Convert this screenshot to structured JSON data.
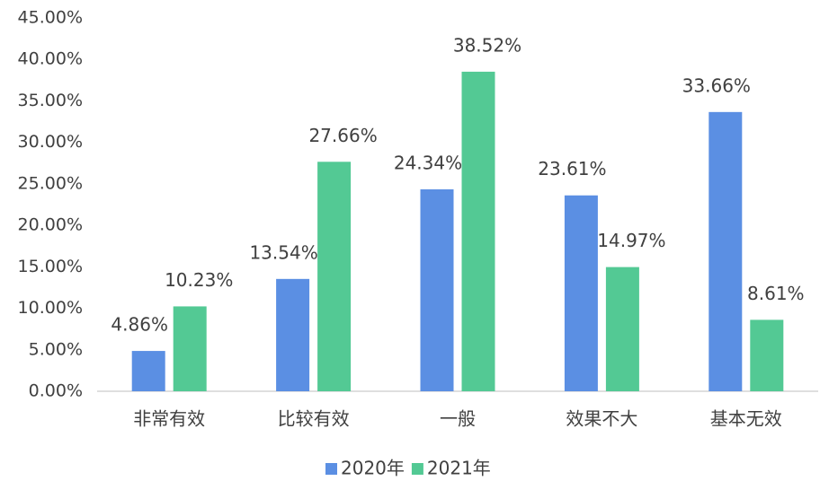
{
  "chart_data": {
    "type": "bar",
    "categories": [
      "非常有效",
      "比较有效",
      "一般",
      "效果不大",
      "基本无效"
    ],
    "series": [
      {
        "name": "2020年",
        "color": "#5b8fe3",
        "values": [
          4.86,
          13.54,
          24.34,
          23.61,
          33.66
        ],
        "value_labels": [
          "4.86%",
          "13.54%",
          "24.34%",
          "23.61%",
          "33.66%"
        ]
      },
      {
        "name": "2021年",
        "color": "#53c994",
        "values": [
          10.23,
          27.66,
          38.52,
          14.97,
          8.61
        ],
        "value_labels": [
          "10.23%",
          "27.66%",
          "38.52%",
          "14.97%",
          "8.61%"
        ]
      }
    ],
    "ylim": [
      0,
      45
    ],
    "yticks": [
      {
        "value": 0,
        "label": "0.00%"
      },
      {
        "value": 5,
        "label": "5.00%"
      },
      {
        "value": 10,
        "label": "10.00%"
      },
      {
        "value": 15,
        "label": "15.00%"
      },
      {
        "value": 20,
        "label": "20.00%"
      },
      {
        "value": 25,
        "label": "25.00%"
      },
      {
        "value": 30,
        "label": "30.00%"
      },
      {
        "value": 35,
        "label": "35.00%"
      },
      {
        "value": 40,
        "label": "40.00%"
      },
      {
        "value": 45,
        "label": "45.00%"
      }
    ],
    "grid": false,
    "legend": "bottom"
  }
}
